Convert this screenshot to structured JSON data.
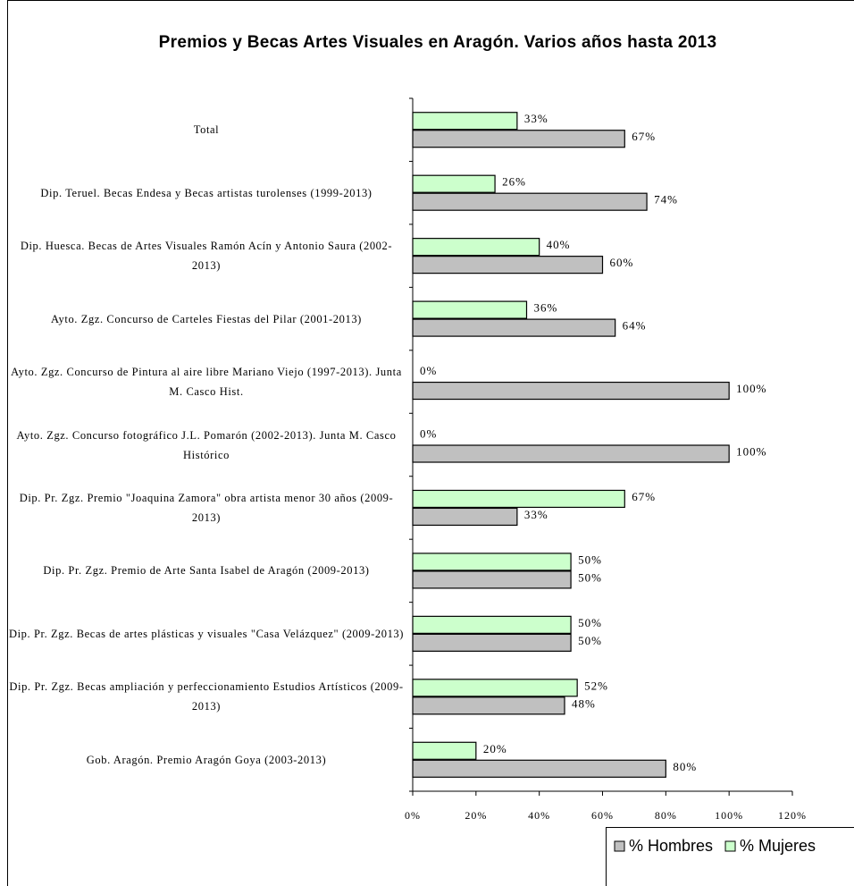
{
  "chart_data": {
    "type": "bar",
    "orientation": "horizontal",
    "title": "Premios y Becas Artes Visuales en Aragón. Varios años hasta 2013",
    "categories": [
      "Total",
      "Dip. Teruel. Becas Endesa y Becas artistas turolenses (1999-2013)",
      "Dip. Huesca. Becas de Artes Visuales Ramón Acín y Antonio Saura (2002-2013)",
      "Ayto. Zgz. Concurso de Carteles Fiestas del Pilar (2001-2013)",
      "Ayto. Zgz. Concurso de Pintura al aire libre Mariano Viejo (1997-2013). Junta M. Casco Hist.",
      "Ayto. Zgz. Concurso fotográfico J.L. Pomarón (2002-2013). Junta M. Casco Histórico",
      "Dip. Pr. Zgz. Premio \"Joaquina Zamora\" obra artista menor 30 años (2009-2013)",
      "Dip. Pr. Zgz. Premio de Arte Santa Isabel de Aragón (2009-2013)",
      "Dip. Pr. Zgz. Becas de artes plásticas y visuales \"Casa Velázquez\" (2009-2013)",
      "Dip. Pr. Zgz. Becas ampliación y perfeccionamiento Estudios Artísticos (2009-2013)",
      "Gob. Aragón. Premio Aragón Goya (2003-2013)"
    ],
    "series": [
      {
        "name": "% Hombres",
        "color": "#c0c0c0",
        "values": [
          67,
          74,
          60,
          64,
          100,
          100,
          33,
          50,
          50,
          48,
          80
        ],
        "value_labels": [
          "67%",
          "74%",
          "60%",
          "64%",
          "100%",
          "100%",
          "33%",
          "50%",
          "50%",
          "48%",
          "80%"
        ]
      },
      {
        "name": "% Mujeres",
        "color": "#ccffcc",
        "values": [
          33,
          26,
          40,
          36,
          0,
          0,
          67,
          50,
          50,
          52,
          20
        ],
        "value_labels": [
          "33%",
          "26%",
          "40%",
          "36%",
          "0%",
          "0%",
          "67%",
          "50%",
          "50%",
          "52%",
          "20%"
        ]
      }
    ],
    "xlim": [
      0,
      120
    ],
    "xticks": [
      {
        "value": 0,
        "label": "0%"
      },
      {
        "value": 20,
        "label": "20%"
      },
      {
        "value": 40,
        "label": "40%"
      },
      {
        "value": 60,
        "label": "60%"
      },
      {
        "value": 80,
        "label": "80%"
      },
      {
        "value": 100,
        "label": "100%"
      },
      {
        "value": 120,
        "label": "120%"
      }
    ],
    "legend": "bottom-right"
  }
}
